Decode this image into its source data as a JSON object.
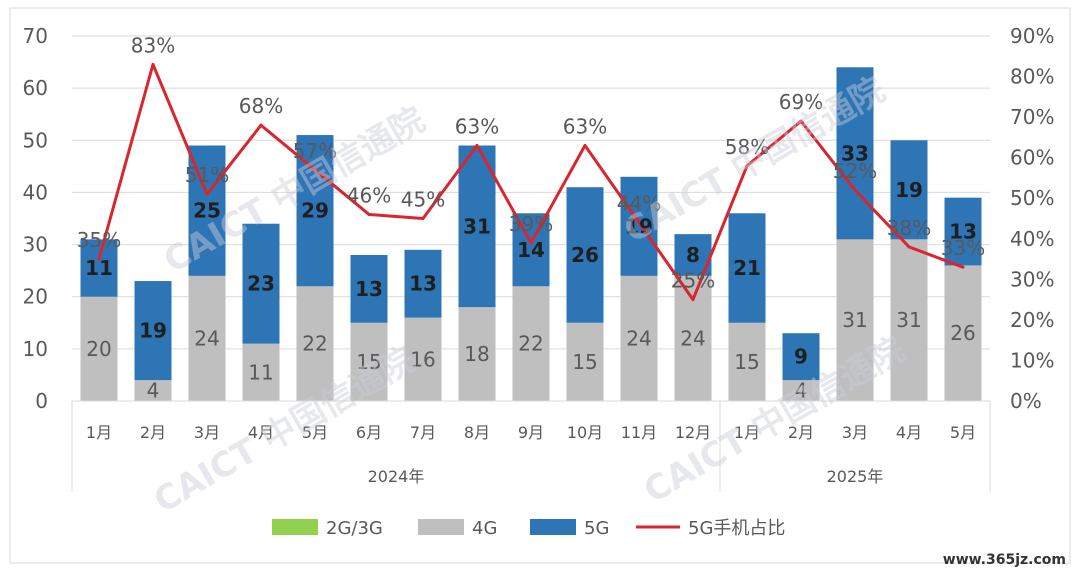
{
  "chart_data": {
    "type": "bar",
    "stacked": true,
    "categories": [
      "1月",
      "2月",
      "3月",
      "4月",
      "5月",
      "6月",
      "7月",
      "8月",
      "9月",
      "10月",
      "11月",
      "12月",
      "1月",
      "2月",
      "3月",
      "4月",
      "5月"
    ],
    "groups": [
      {
        "label": "2024年",
        "from": 0,
        "to": 11
      },
      {
        "label": "2025年",
        "from": 12,
        "to": 16
      }
    ],
    "series": [
      {
        "name": "2G/3G",
        "color": "#92d050",
        "values": [
          0,
          0,
          0,
          0,
          0,
          0,
          0,
          0,
          0,
          0,
          0,
          0,
          0,
          0,
          0,
          0,
          0
        ]
      },
      {
        "name": "4G",
        "color": "#bfbfbf",
        "values": [
          20,
          4,
          24,
          11,
          22,
          15,
          16,
          18,
          22,
          15,
          24,
          24,
          15,
          4,
          31,
          31,
          26
        ]
      },
      {
        "name": "5G",
        "color": "#2e75b6",
        "values": [
          11,
          19,
          25,
          23,
          29,
          13,
          13,
          31,
          14,
          26,
          19,
          8,
          21,
          9,
          33,
          19,
          13
        ]
      }
    ],
    "line_series": {
      "name": "5G手机占比",
      "color": "#d9262e",
      "axis": "right",
      "values": [
        35,
        83,
        51,
        68,
        57,
        46,
        45,
        63,
        39,
        63,
        44,
        25,
        58,
        69,
        52,
        38,
        33
      ],
      "labels": [
        "35%",
        "83%",
        "51%",
        "68%",
        "57%",
        "46%",
        "45%",
        "63%",
        "39%",
        "63%",
        "44%",
        "25%",
        "58%",
        "69%",
        "52%",
        "38%",
        "33%"
      ]
    },
    "y_left": {
      "min": 0,
      "max": 70,
      "ticks": [
        "0",
        "10",
        "20",
        "30",
        "40",
        "50",
        "60",
        "70"
      ]
    },
    "y_right": {
      "min": 0,
      "max": 90,
      "ticks": [
        "0%",
        "10%",
        "20%",
        "30%",
        "40%",
        "50%",
        "60%",
        "70%",
        "80%",
        "90%"
      ]
    },
    "grid": true,
    "legend": {
      "placement": "bottom",
      "items": [
        "2G/3G",
        "4G",
        "5G",
        "5G手机占比"
      ]
    }
  },
  "watermark": {
    "text": "CAICT 中国信通院"
  },
  "site_label": "www.365jz.com"
}
